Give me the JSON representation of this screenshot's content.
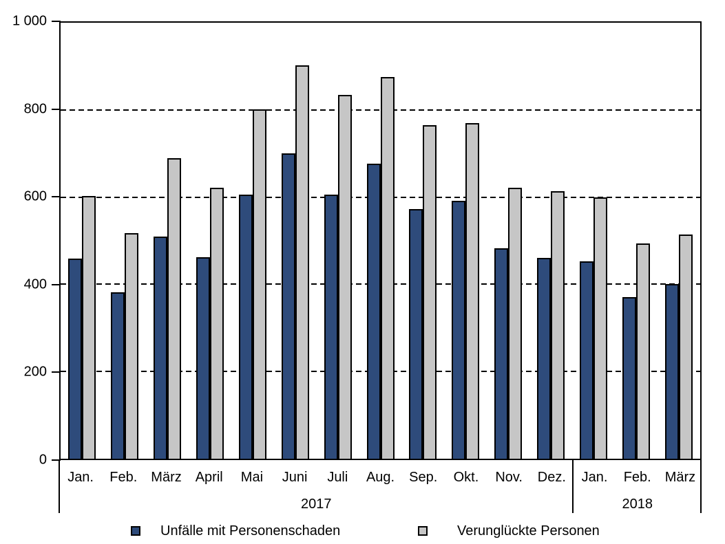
{
  "chart_data": {
    "type": "bar",
    "title": "",
    "xlabel": "",
    "ylabel": "",
    "ylim": [
      0,
      1000
    ],
    "ytick_interval": 200,
    "yticks_top_down": [
      "1 000",
      "800",
      "600",
      "400",
      "200",
      "0"
    ],
    "grid": {
      "horizontal_dashed_at": [
        200,
        400,
        600,
        800
      ]
    },
    "categories": [
      "Jan.",
      "Feb.",
      "März",
      "April",
      "Mai",
      "Juni",
      "Juli",
      "Aug.",
      "Sep.",
      "Okt.",
      "Nov.",
      "Dez.",
      "Jan.",
      "Feb.",
      "März"
    ],
    "year_groups": [
      {
        "label": "2017",
        "span": 12
      },
      {
        "label": "2018",
        "span": 3
      }
    ],
    "series": [
      {
        "name": "Unfälle mit Personenschaden",
        "color": "#2E4B7B",
        "values": [
          459,
          381,
          510,
          462,
          606,
          700,
          606,
          676,
          572,
          592,
          482,
          461,
          452,
          371,
          401
        ]
      },
      {
        "name": "Verunglückte Personen",
        "color": "#C6C6C6",
        "values": [
          603,
          518,
          690,
          622,
          801,
          903,
          835,
          875,
          765,
          770,
          622,
          614,
          600,
          494,
          514
        ]
      }
    ],
    "legend_position": "bottom"
  }
}
